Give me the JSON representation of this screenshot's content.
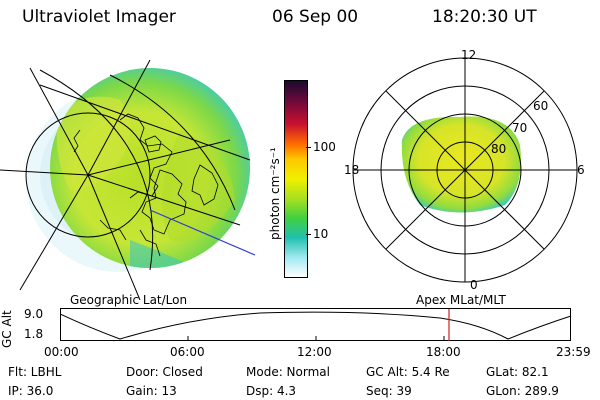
{
  "header": {
    "title": "Ultraviolet Imager",
    "date": "06 Sep 00",
    "time": "18:20:30 UT"
  },
  "colorbar": {
    "unit_label": "photon cm⁻²s⁻¹",
    "ticks": [
      "100",
      "10"
    ],
    "colors": [
      "#1a0a2e",
      "#6a0a3a",
      "#c8102e",
      "#ff6a00",
      "#ffc800",
      "#f0f000",
      "#a8e020",
      "#40d040",
      "#20c0b0",
      "#a0e8f0",
      "#ffffff"
    ]
  },
  "polar_plot": {
    "mlt_labels": {
      "top": "12",
      "left": "18",
      "right": "6",
      "bottom": "0"
    },
    "lat_labels": [
      "60",
      "70",
      "80"
    ]
  },
  "left_map_label": "Geographic Lat/Lon",
  "right_map_label": "Apex MLat/MLT",
  "altitude_plot": {
    "ylabel": "GC Alt",
    "yticks": [
      "9.0",
      "1.8"
    ],
    "xticks": [
      "00:00",
      "06:00",
      "12:00",
      "18:00",
      "23:59"
    ],
    "marker_color": "#d02020"
  },
  "info": {
    "flt": "Flt: LBHL",
    "door": "Door: Closed",
    "mode": "Mode: Normal",
    "gc_alt": "GC Alt: 5.4 Re",
    "glat": "GLat:  82.1",
    "ip": "IP: 36.0",
    "gain": "Gain: 13",
    "dsp": "Dsp:     4.3",
    "seq": "Seq: 39",
    "glon": "GLon: 289.9"
  }
}
